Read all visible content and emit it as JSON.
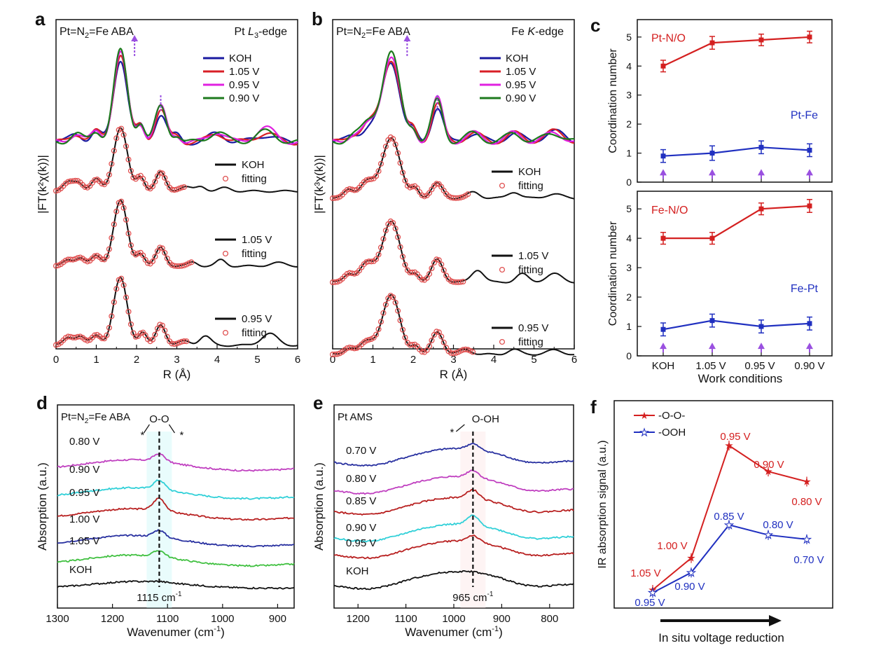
{
  "colors": {
    "koh": "#1a1aa0",
    "v105": "#d81f26",
    "v095": "#e020e0",
    "v090": "#1d7a1d",
    "fit": "#e05050",
    "cn_red": "#d42020",
    "cn_blue": "#2030c0",
    "arrow": "#9a50e0",
    "ir": {
      "v080": "#c040c0",
      "v090": "#30d0d8",
      "v095": "#b82020",
      "v100": "#2830a0",
      "v105": "#40c040",
      "v085": "#b82020",
      "v070": "#2830a0",
      "koh": "#111111"
    }
  },
  "panels": {
    "a": {
      "letter": "a",
      "sample": "Pt=N",
      "sample_sub": "2",
      "sample_tail": "=Fe ABA",
      "edge_pre": "Pt ",
      "edge_italic": "L",
      "edge_sub": "3",
      "edge_post": "-edge",
      "ylabel": "|FT(k²χ(k))|",
      "xlabel": "R (Å)",
      "x_ticks": [
        "0",
        "1",
        "2",
        "3",
        "4",
        "5",
        "6"
      ],
      "legend": [
        "KOH",
        "1.05 V",
        "0.95 V",
        "0.90 V"
      ],
      "fit_legends": [
        [
          "KOH",
          "fitting"
        ],
        [
          "1.05 V",
          "fitting"
        ],
        [
          "0.95 V",
          "fitting"
        ]
      ]
    },
    "b": {
      "letter": "b",
      "sample": "Pt=N",
      "sample_sub": "2",
      "sample_tail": "=Fe ABA",
      "edge_pre": "Fe ",
      "edge_italic": "K",
      "edge_post": "-edge",
      "ylabel": "|FT(k³χ(k))|",
      "xlabel": "R (Å)",
      "x_ticks": [
        "0",
        "1",
        "2",
        "3",
        "4",
        "5",
        "6"
      ],
      "legend": [
        "KOH",
        "1.05 V",
        "0.95 V",
        "0.90 V"
      ],
      "fit_legends": [
        [
          "KOH",
          "fitting"
        ],
        [
          "1.05 V",
          "fitting"
        ],
        [
          "0.95 V",
          "fitting"
        ]
      ]
    },
    "c": {
      "letter": "c",
      "ylabel": "Coordination number",
      "xlabel": "Work conditions",
      "categories": [
        "KOH",
        "1.05 V",
        "0.95 V",
        "0.90 V"
      ],
      "top": {
        "red_label": "Pt-N/O",
        "blue_label": "Pt-Fe",
        "y_ticks": [
          "0",
          "1",
          "2",
          "3",
          "4",
          "5"
        ]
      },
      "bottom": {
        "red_label": "Fe-N/O",
        "blue_label": "Fe-Pt",
        "y_ticks": [
          "0",
          "1",
          "2",
          "3",
          "4",
          "5"
        ]
      }
    },
    "d": {
      "letter": "d",
      "sample": "Pt=N",
      "sample_sub": "2",
      "sample_tail": "=Fe ABA",
      "ylabel": "Absorption (a.u.)",
      "xlabel": "Wavenumer (cm",
      "xlabel_sup": "-1",
      "xlabel_tail": ")",
      "x_ticks": [
        "1300",
        "1200",
        "1100",
        "1000",
        "900"
      ],
      "peak_label": "1115 cm",
      "peak_sup": "-1",
      "bond_label": "O-O",
      "star": "*",
      "labels": [
        "0.80 V",
        "0.90 V",
        "0.95 V",
        "1.00 V",
        "1.05 V",
        "KOH"
      ]
    },
    "e": {
      "letter": "e",
      "sample": "Pt AMS",
      "ylabel": "Absorption (a.u.)",
      "xlabel": "Wavenumer (cm",
      "xlabel_sup": "-1",
      "xlabel_tail": ")",
      "x_ticks": [
        "1200",
        "1100",
        "1000",
        "900",
        "800"
      ],
      "peak_label": "965 cm",
      "peak_sup": "-1",
      "bond_label": "O-OH",
      "star": "*",
      "labels": [
        "0.70 V",
        "0.80 V",
        "0.85 V",
        "0.90 V",
        "0.95 V",
        "KOH"
      ]
    },
    "f": {
      "letter": "f",
      "ylabel": "IR absorption signal (a.u.)",
      "xlabel": "In situ voltage reduction",
      "legend": [
        "-O-O-",
        "-OOH"
      ],
      "oo_labels": [
        "1.05 V",
        "1.00 V",
        "0.95 V",
        "0.90 V",
        "0.80 V"
      ],
      "ooh_labels": [
        "0.95 V",
        "0.90 V",
        "0.85 V",
        "0.80 V",
        "0.70 V"
      ]
    }
  },
  "chart_data": [
    {
      "panel": "a",
      "type": "line",
      "title": "Pt L3-edge",
      "xlabel": "R (Å)",
      "ylabel": "|FT(k²χ(k))|",
      "xlim": [
        0,
        6
      ],
      "series": [
        {
          "name": "KOH",
          "x": [
            0.5,
            1.0,
            1.6,
            2.1,
            2.6,
            3.0,
            4.0,
            5.2
          ],
          "values": [
            0.1,
            0.12,
            0.95,
            0.18,
            0.32,
            0.08,
            0.1,
            0.08
          ]
        },
        {
          "name": "1.05 V",
          "x": [
            0.5,
            1.0,
            1.6,
            2.1,
            2.6,
            3.0,
            4.0,
            5.2
          ],
          "values": [
            0.1,
            0.12,
            1.0,
            0.2,
            0.36,
            0.08,
            0.1,
            0.1
          ]
        },
        {
          "name": "0.95 V",
          "x": [
            0.5,
            1.0,
            1.6,
            2.1,
            2.6,
            3.0,
            4.0,
            5.2
          ],
          "values": [
            0.1,
            0.12,
            1.02,
            0.2,
            0.4,
            0.08,
            0.12,
            0.16
          ]
        },
        {
          "name": "0.90 V",
          "x": [
            0.5,
            1.0,
            1.6,
            2.1,
            2.6,
            3.0,
            4.0,
            5.2
          ],
          "values": [
            0.1,
            0.12,
            1.04,
            0.22,
            0.4,
            0.08,
            0.12,
            0.12
          ]
        }
      ]
    },
    {
      "panel": "b",
      "type": "line",
      "title": "Fe K-edge",
      "xlabel": "R (Å)",
      "ylabel": "|FT(k³χ(k))|",
      "xlim": [
        0,
        6
      ],
      "series": [
        {
          "name": "KOH",
          "x": [
            0.5,
            0.9,
            1.45,
            2.0,
            2.6,
            3.5,
            4.5,
            5.5
          ],
          "values": [
            0.08,
            0.15,
            0.92,
            0.12,
            0.4,
            0.1,
            0.1,
            0.12
          ]
        },
        {
          "name": "1.05 V",
          "x": [
            0.5,
            0.9,
            1.45,
            2.0,
            2.6,
            3.5,
            4.5,
            5.5
          ],
          "values": [
            0.08,
            0.2,
            0.95,
            0.14,
            0.44,
            0.1,
            0.1,
            0.12
          ]
        },
        {
          "name": "0.95 V",
          "x": [
            0.5,
            0.9,
            1.45,
            2.0,
            2.6,
            3.5,
            4.5,
            5.5
          ],
          "values": [
            0.08,
            0.18,
            0.98,
            0.12,
            0.5,
            0.1,
            0.1,
            0.1
          ]
        },
        {
          "name": "0.90 V",
          "x": [
            0.5,
            0.9,
            1.45,
            2.0,
            2.6,
            3.5,
            4.5,
            5.5
          ],
          "values": [
            0.08,
            0.22,
            1.02,
            0.14,
            0.48,
            0.1,
            0.1,
            0.1
          ]
        }
      ]
    },
    {
      "panel": "c-top",
      "type": "line",
      "ylabel": "Coordination number",
      "ylim": [
        0,
        5.6
      ],
      "categories": [
        "KOH",
        "1.05 V",
        "0.95 V",
        "0.90 V"
      ],
      "series": [
        {
          "name": "Pt-N/O",
          "values": [
            4.0,
            4.8,
            4.9,
            5.0
          ],
          "errors": [
            0.2,
            0.22,
            0.2,
            0.2
          ]
        },
        {
          "name": "Pt-Fe",
          "values": [
            0.9,
            1.0,
            1.2,
            1.1
          ],
          "errors": [
            0.22,
            0.25,
            0.22,
            0.22
          ]
        }
      ]
    },
    {
      "panel": "c-bottom",
      "type": "line",
      "ylabel": "Coordination number",
      "xlabel": "Work conditions",
      "ylim": [
        0,
        5.6
      ],
      "categories": [
        "KOH",
        "1.05 V",
        "0.95 V",
        "0.90 V"
      ],
      "series": [
        {
          "name": "Fe-N/O",
          "values": [
            4.0,
            4.0,
            5.0,
            5.1
          ],
          "errors": [
            0.2,
            0.2,
            0.2,
            0.22
          ]
        },
        {
          "name": "Fe-Pt",
          "values": [
            0.9,
            1.2,
            1.0,
            1.1
          ],
          "errors": [
            0.22,
            0.22,
            0.22,
            0.22
          ]
        }
      ]
    },
    {
      "panel": "d",
      "type": "line",
      "xlabel": "Wavenumer (cm-1)",
      "ylabel": "Absorption (a.u.)",
      "xlim": [
        1300,
        870
      ],
      "peak": 1115,
      "series": [
        {
          "name": "0.80 V",
          "peak_height": 0.5
        },
        {
          "name": "0.90 V",
          "peak_height": 0.6
        },
        {
          "name": "0.95 V",
          "peak_height": 0.8
        },
        {
          "name": "1.00 V",
          "peak_height": 0.45
        },
        {
          "name": "1.05 V",
          "peak_height": 0.4
        },
        {
          "name": "KOH",
          "peak_height": 0.05
        }
      ]
    },
    {
      "panel": "e",
      "type": "line",
      "xlabel": "Wavenumer (cm-1)",
      "ylabel": "Absorption (a.u.)",
      "xlim": [
        1250,
        750
      ],
      "peak": 965,
      "series": [
        {
          "name": "0.70 V",
          "peak_height": 0.35
        },
        {
          "name": "0.80 V",
          "peak_height": 0.45
        },
        {
          "name": "0.85 V",
          "peak_height": 0.55
        },
        {
          "name": "0.90 V",
          "peak_height": 0.6
        },
        {
          "name": "0.95 V",
          "peak_height": 0.4
        },
        {
          "name": "KOH",
          "peak_height": 0.05
        }
      ]
    },
    {
      "panel": "f",
      "type": "line",
      "ylabel": "IR absorption signal (a.u.)",
      "xlabel": "In situ voltage reduction",
      "series": [
        {
          "name": "-O-O-",
          "labels": [
            "1.05 V",
            "1.00 V",
            "0.95 V",
            "0.90 V",
            "0.80 V"
          ],
          "values": [
            0.0,
            0.22,
            1.0,
            0.82,
            0.75
          ]
        },
        {
          "name": "-OOH",
          "labels": [
            "0.95 V",
            "0.90 V",
            "0.85 V",
            "0.80 V",
            "0.70 V"
          ],
          "values": [
            -0.02,
            0.12,
            0.45,
            0.38,
            0.35
          ]
        }
      ]
    }
  ]
}
